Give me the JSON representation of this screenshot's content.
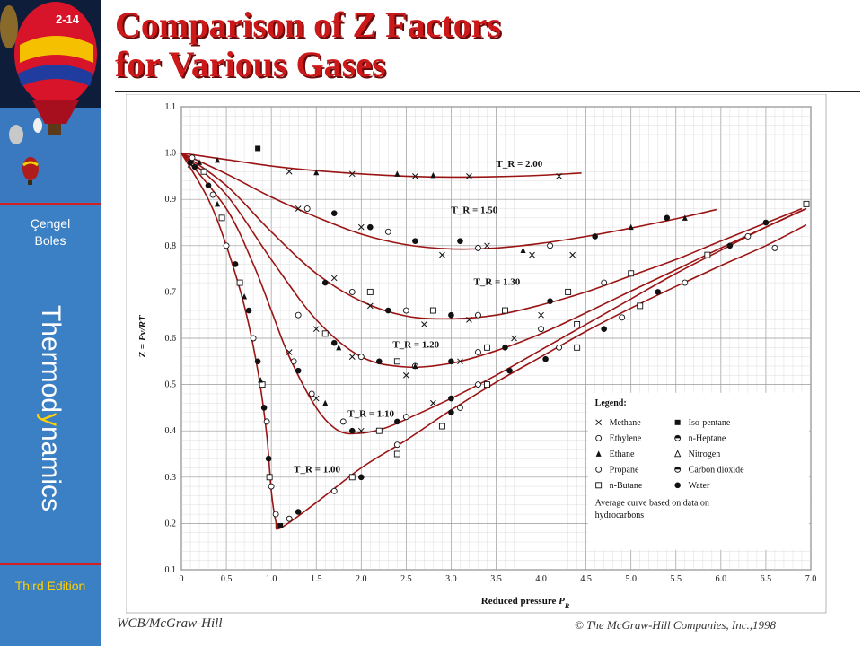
{
  "slide": {
    "number": "2-14",
    "title_line1": "Comparison of Z Factors",
    "title_line2": "for Various Gases"
  },
  "sidebar": {
    "author1": "Çengel",
    "author2": "Boles",
    "vertical_title_a": "Thermod",
    "vertical_title_b": "y",
    "vertical_title_c": "namics",
    "edition": "Third Edition"
  },
  "footer": {
    "publisher": "WCB/McGraw-Hill",
    "copyright": "© The McGraw-Hill Companies, Inc.,1998"
  },
  "colors": {
    "sidebar_bg": "#3b7fc4",
    "title_red": "#cc1818",
    "curve_red": "#9b1414",
    "edition_yellow": "#ffd200"
  },
  "chart_data": {
    "type": "scatter",
    "xlabel": "Reduced pressure P_R",
    "ylabel": "Z = Pv/RT",
    "xlim": [
      0,
      7.0
    ],
    "ylim": [
      0.1,
      1.1
    ],
    "xticks": [
      "0",
      "0.5",
      "1.0",
      "1.5",
      "2.0",
      "2.5",
      "3.0",
      "3.5",
      "4.0",
      "4.5",
      "5.0",
      "5.5",
      "6.0",
      "6.5",
      "7.0"
    ],
    "yticks": [
      "0.1",
      "0.2",
      "0.3",
      "0.4",
      "0.5",
      "0.6",
      "0.7",
      "0.8",
      "0.9",
      "1.0",
      "1.1"
    ],
    "grid": true,
    "curves": [
      {
        "name": "T_R = 2.00",
        "label_at": [
          3.5,
          0.97
        ],
        "x": [
          0,
          0.5,
          1.0,
          1.5,
          2.0,
          2.5,
          3.0,
          3.5,
          4.0,
          4.45
        ],
        "y": [
          1.0,
          0.986,
          0.972,
          0.962,
          0.955,
          0.95,
          0.948,
          0.949,
          0.952,
          0.957
        ]
      },
      {
        "name": "T_R = 1.50",
        "label_at": [
          3.0,
          0.87
        ],
        "x": [
          0,
          0.5,
          1.0,
          1.5,
          2.0,
          2.5,
          3.0,
          3.5,
          4.0,
          4.5,
          5.0,
          5.5,
          5.95
        ],
        "y": [
          1.0,
          0.955,
          0.905,
          0.862,
          0.825,
          0.802,
          0.793,
          0.795,
          0.805,
          0.82,
          0.838,
          0.858,
          0.878
        ]
      },
      {
        "name": "T_R = 1.30",
        "label_at": [
          3.25,
          0.715
        ],
        "x": [
          0,
          0.5,
          1.0,
          1.5,
          2.0,
          2.5,
          3.0,
          3.5,
          4.0,
          4.5,
          5.0,
          5.5,
          6.0,
          6.9
        ],
        "y": [
          1.0,
          0.93,
          0.83,
          0.74,
          0.68,
          0.648,
          0.642,
          0.65,
          0.672,
          0.7,
          0.735,
          0.77,
          0.81,
          0.88
        ]
      },
      {
        "name": "T_R = 1.20",
        "label_at": [
          2.35,
          0.58
        ],
        "x": [
          0,
          0.5,
          1.0,
          1.5,
          2.0,
          2.5,
          3.0,
          3.5,
          4.0,
          4.5,
          5.0,
          5.5,
          6.0,
          6.5,
          6.95
        ],
        "y": [
          1.0,
          0.91,
          0.77,
          0.64,
          0.56,
          0.538,
          0.546,
          0.573,
          0.61,
          0.655,
          0.702,
          0.748,
          0.795,
          0.84,
          0.88
        ]
      },
      {
        "name": "T_R = 1.10",
        "label_at": [
          1.85,
          0.43
        ],
        "x": [
          0,
          0.5,
          0.8,
          1.0,
          1.2,
          1.5,
          1.75,
          2.0,
          2.25,
          2.5,
          3.0,
          3.5,
          4.0,
          4.5,
          5.0,
          5.5,
          6.0,
          6.5,
          6.95
        ],
        "y": [
          1.0,
          0.88,
          0.76,
          0.66,
          0.56,
          0.45,
          0.4,
          0.395,
          0.405,
          0.425,
          0.47,
          0.52,
          0.575,
          0.63,
          0.685,
          0.74,
          0.79,
          0.84,
          0.88
        ]
      },
      {
        "name": "T_R = 1.00",
        "label_at": [
          1.25,
          0.31
        ],
        "x": [
          0,
          0.3,
          0.5,
          0.7,
          0.85,
          0.95,
          1.0,
          1.05,
          1.1,
          1.5,
          2.0,
          2.5,
          3.0,
          3.5,
          4.0,
          4.5,
          5.0,
          5.5,
          6.0,
          6.5,
          6.95
        ],
        "y": [
          1.0,
          0.9,
          0.8,
          0.67,
          0.53,
          0.39,
          0.27,
          0.205,
          0.19,
          0.245,
          0.32,
          0.38,
          0.445,
          0.505,
          0.56,
          0.615,
          0.665,
          0.712,
          0.757,
          0.8,
          0.845
        ]
      }
    ],
    "data_points": [
      {
        "m": "x",
        "x": 1.2,
        "y": 0.96
      },
      {
        "m": "x",
        "x": 1.9,
        "y": 0.955
      },
      {
        "m": "x",
        "x": 2.6,
        "y": 0.95
      },
      {
        "m": "x",
        "x": 3.2,
        "y": 0.95
      },
      {
        "m": "x",
        "x": 4.2,
        "y": 0.95
      },
      {
        "m": "tri",
        "x": 0.4,
        "y": 0.985
      },
      {
        "m": "tri",
        "x": 1.5,
        "y": 0.958
      },
      {
        "m": "tri",
        "x": 2.4,
        "y": 0.955
      },
      {
        "m": "tri",
        "x": 2.8,
        "y": 0.952
      },
      {
        "m": "x",
        "x": 1.3,
        "y": 0.88
      },
      {
        "m": "x",
        "x": 2.0,
        "y": 0.84
      },
      {
        "m": "x",
        "x": 2.9,
        "y": 0.78
      },
      {
        "m": "x",
        "x": 3.4,
        "y": 0.8
      },
      {
        "m": "x",
        "x": 3.9,
        "y": 0.78
      },
      {
        "m": "x",
        "x": 4.35,
        "y": 0.78
      },
      {
        "m": "dot",
        "x": 1.7,
        "y": 0.87
      },
      {
        "m": "dot",
        "x": 2.1,
        "y": 0.84
      },
      {
        "m": "dot",
        "x": 2.6,
        "y": 0.81
      },
      {
        "m": "dot",
        "x": 3.1,
        "y": 0.81
      },
      {
        "m": "dot",
        "x": 4.6,
        "y": 0.82
      },
      {
        "m": "dot",
        "x": 5.4,
        "y": 0.86
      },
      {
        "m": "circ",
        "x": 1.4,
        "y": 0.88
      },
      {
        "m": "circ",
        "x": 2.3,
        "y": 0.83
      },
      {
        "m": "circ",
        "x": 3.3,
        "y": 0.795
      },
      {
        "m": "circ",
        "x": 4.1,
        "y": 0.8
      },
      {
        "m": "tri",
        "x": 5.6,
        "y": 0.86
      },
      {
        "m": "tri",
        "x": 5.0,
        "y": 0.84
      },
      {
        "m": "tri",
        "x": 3.8,
        "y": 0.79
      },
      {
        "m": "x",
        "x": 1.7,
        "y": 0.73
      },
      {
        "m": "x",
        "x": 2.1,
        "y": 0.67
      },
      {
        "m": "x",
        "x": 2.7,
        "y": 0.63
      },
      {
        "m": "x",
        "x": 3.2,
        "y": 0.64
      },
      {
        "m": "x",
        "x": 4.0,
        "y": 0.65
      },
      {
        "m": "sq",
        "x": 2.1,
        "y": 0.7
      },
      {
        "m": "sq",
        "x": 2.8,
        "y": 0.66
      },
      {
        "m": "sq",
        "x": 3.6,
        "y": 0.66
      },
      {
        "m": "sq",
        "x": 4.3,
        "y": 0.7
      },
      {
        "m": "sq",
        "x": 5.0,
        "y": 0.74
      },
      {
        "m": "circ",
        "x": 1.9,
        "y": 0.7
      },
      {
        "m": "circ",
        "x": 2.5,
        "y": 0.66
      },
      {
        "m": "circ",
        "x": 3.3,
        "y": 0.65
      },
      {
        "m": "circ",
        "x": 4.7,
        "y": 0.72
      },
      {
        "m": "dot",
        "x": 1.6,
        "y": 0.72
      },
      {
        "m": "dot",
        "x": 2.3,
        "y": 0.66
      },
      {
        "m": "dot",
        "x": 3.0,
        "y": 0.65
      },
      {
        "m": "dot",
        "x": 4.1,
        "y": 0.68
      },
      {
        "m": "x",
        "x": 1.5,
        "y": 0.62
      },
      {
        "m": "x",
        "x": 1.9,
        "y": 0.56
      },
      {
        "m": "x",
        "x": 2.5,
        "y": 0.52
      },
      {
        "m": "x",
        "x": 3.1,
        "y": 0.55
      },
      {
        "m": "x",
        "x": 3.7,
        "y": 0.6
      },
      {
        "m": "circ",
        "x": 1.3,
        "y": 0.65
      },
      {
        "m": "circ",
        "x": 2.0,
        "y": 0.56
      },
      {
        "m": "circ",
        "x": 2.6,
        "y": 0.54
      },
      {
        "m": "circ",
        "x": 3.3,
        "y": 0.57
      },
      {
        "m": "circ",
        "x": 4.0,
        "y": 0.62
      },
      {
        "m": "sq",
        "x": 1.6,
        "y": 0.61
      },
      {
        "m": "sq",
        "x": 2.4,
        "y": 0.55
      },
      {
        "m": "sq",
        "x": 3.4,
        "y": 0.58
      },
      {
        "m": "sq",
        "x": 4.4,
        "y": 0.63
      },
      {
        "m": "dot",
        "x": 1.7,
        "y": 0.59
      },
      {
        "m": "dot",
        "x": 2.2,
        "y": 0.55
      },
      {
        "m": "dot",
        "x": 3.0,
        "y": 0.55
      },
      {
        "m": "dot",
        "x": 3.6,
        "y": 0.58
      },
      {
        "m": "tri",
        "x": 1.75,
        "y": 0.58
      },
      {
        "m": "tri",
        "x": 2.6,
        "y": 0.54
      },
      {
        "m": "x",
        "x": 1.2,
        "y": 0.57
      },
      {
        "m": "x",
        "x": 1.5,
        "y": 0.47
      },
      {
        "m": "x",
        "x": 2.0,
        "y": 0.4
      },
      {
        "m": "x",
        "x": 2.8,
        "y": 0.46
      },
      {
        "m": "circ",
        "x": 1.25,
        "y": 0.55
      },
      {
        "m": "circ",
        "x": 1.45,
        "y": 0.48
      },
      {
        "m": "circ",
        "x": 1.8,
        "y": 0.42
      },
      {
        "m": "circ",
        "x": 2.5,
        "y": 0.43
      },
      {
        "m": "circ",
        "x": 3.1,
        "y": 0.45
      },
      {
        "m": "dot",
        "x": 1.3,
        "y": 0.53
      },
      {
        "m": "dot",
        "x": 1.9,
        "y": 0.4
      },
      {
        "m": "dot",
        "x": 2.4,
        "y": 0.42
      },
      {
        "m": "dot",
        "x": 3.0,
        "y": 0.47
      },
      {
        "m": "sq",
        "x": 2.2,
        "y": 0.4
      },
      {
        "m": "sq",
        "x": 2.9,
        "y": 0.41
      },
      {
        "m": "tri",
        "x": 1.6,
        "y": 0.46
      },
      {
        "m": "dot",
        "x": 0.6,
        "y": 0.76
      },
      {
        "m": "dot",
        "x": 0.75,
        "y": 0.66
      },
      {
        "m": "dot",
        "x": 0.85,
        "y": 0.55
      },
      {
        "m": "dot",
        "x": 0.92,
        "y": 0.45
      },
      {
        "m": "dot",
        "x": 0.97,
        "y": 0.34
      },
      {
        "m": "circ",
        "x": 0.5,
        "y": 0.8
      },
      {
        "m": "circ",
        "x": 0.8,
        "y": 0.6
      },
      {
        "m": "circ",
        "x": 0.95,
        "y": 0.42
      },
      {
        "m": "circ",
        "x": 1.0,
        "y": 0.28
      },
      {
        "m": "circ",
        "x": 1.05,
        "y": 0.22
      },
      {
        "m": "sq",
        "x": 0.65,
        "y": 0.72
      },
      {
        "m": "sq",
        "x": 0.9,
        "y": 0.5
      },
      {
        "m": "sq",
        "x": 0.98,
        "y": 0.3
      },
      {
        "m": "tri",
        "x": 0.7,
        "y": 0.69
      },
      {
        "m": "tri",
        "x": 0.88,
        "y": 0.51
      },
      {
        "m": "fsq",
        "x": 0.85,
        "y": 1.01
      },
      {
        "m": "fsq",
        "x": 1.1,
        "y": 0.195
      },
      {
        "m": "circ",
        "x": 1.2,
        "y": 0.21
      },
      {
        "m": "dot",
        "x": 1.3,
        "y": 0.225
      },
      {
        "m": "circ",
        "x": 1.7,
        "y": 0.27
      },
      {
        "m": "sq",
        "x": 1.9,
        "y": 0.3
      },
      {
        "m": "dot",
        "x": 2.0,
        "y": 0.3
      },
      {
        "m": "sq",
        "x": 2.4,
        "y": 0.35
      },
      {
        "m": "circ",
        "x": 2.4,
        "y": 0.37
      },
      {
        "m": "dot",
        "x": 3.0,
        "y": 0.44
      },
      {
        "m": "circ",
        "x": 3.3,
        "y": 0.5
      },
      {
        "m": "sq",
        "x": 3.4,
        "y": 0.5
      },
      {
        "m": "dot",
        "x": 3.65,
        "y": 0.53
      },
      {
        "m": "dot",
        "x": 4.05,
        "y": 0.555
      },
      {
        "m": "circ",
        "x": 4.2,
        "y": 0.58
      },
      {
        "m": "sq",
        "x": 4.4,
        "y": 0.58
      },
      {
        "m": "dot",
        "x": 4.7,
        "y": 0.62
      },
      {
        "m": "circ",
        "x": 4.9,
        "y": 0.645
      },
      {
        "m": "sq",
        "x": 5.1,
        "y": 0.67
      },
      {
        "m": "dot",
        "x": 5.3,
        "y": 0.7
      },
      {
        "m": "circ",
        "x": 5.6,
        "y": 0.72
      },
      {
        "m": "sq",
        "x": 5.85,
        "y": 0.78
      },
      {
        "m": "dot",
        "x": 6.1,
        "y": 0.8
      },
      {
        "m": "circ",
        "x": 6.3,
        "y": 0.82
      },
      {
        "m": "dot",
        "x": 6.5,
        "y": 0.85
      },
      {
        "m": "circ",
        "x": 6.6,
        "y": 0.795
      },
      {
        "m": "sq",
        "x": 6.95,
        "y": 0.89
      },
      {
        "m": "dot",
        "x": 0.1,
        "y": 0.98
      },
      {
        "m": "dot",
        "x": 0.15,
        "y": 0.97
      },
      {
        "m": "circ",
        "x": 0.12,
        "y": 0.99
      },
      {
        "m": "x",
        "x": 0.1,
        "y": 0.975
      },
      {
        "m": "tri",
        "x": 0.2,
        "y": 0.98
      },
      {
        "m": "sq",
        "x": 0.25,
        "y": 0.96
      },
      {
        "m": "dot",
        "x": 0.3,
        "y": 0.93
      },
      {
        "m": "circ",
        "x": 0.35,
        "y": 0.91
      },
      {
        "m": "tri",
        "x": 0.4,
        "y": 0.89
      },
      {
        "m": "sq",
        "x": 0.45,
        "y": 0.86
      }
    ],
    "legend": {
      "title": "Legend:",
      "entries_left": [
        "Methane",
        "Ethylene",
        "Ethane",
        "Propane",
        "n-Butane"
      ],
      "entries_right": [
        "Iso-pentane",
        "n-Heptane",
        "Nitrogen",
        "Carbon dioxide",
        "Water"
      ],
      "markers_left": [
        "x",
        "circ",
        "tri",
        "circ",
        "sq"
      ],
      "markers_right": [
        "fsq",
        "half",
        "otri",
        "half",
        "dot"
      ],
      "note_line1": "Average curve based on data on",
      "note_line2": "hydrocarbons"
    }
  }
}
